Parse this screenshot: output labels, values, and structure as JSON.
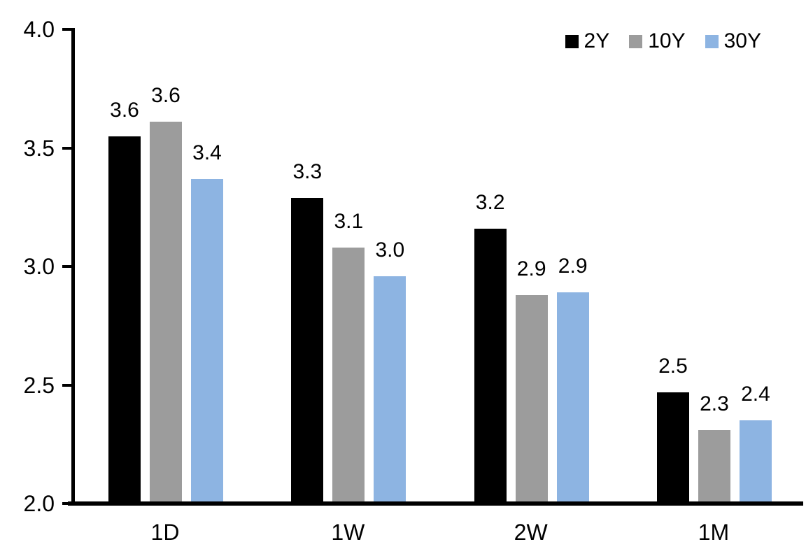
{
  "chart_data": {
    "type": "bar",
    "title": "",
    "xlabel": "",
    "ylabel": "",
    "categories": [
      "1D",
      "1W",
      "2W",
      "1M"
    ],
    "series": [
      {
        "name": "2Y",
        "color": "#000000",
        "values": [
          3.55,
          3.29,
          3.16,
          2.47
        ],
        "labels": [
          "3.6",
          "3.3",
          "3.2",
          "2.5"
        ]
      },
      {
        "name": "10Y",
        "color": "#9C9C9C",
        "values": [
          3.61,
          3.08,
          2.88,
          2.31
        ],
        "labels": [
          "3.6",
          "3.1",
          "2.9",
          "2.3"
        ]
      },
      {
        "name": "30Y",
        "color": "#8DB4E2",
        "values": [
          3.37,
          2.96,
          2.89,
          2.35
        ],
        "labels": [
          "3.4",
          "3.0",
          "2.9",
          "2.4"
        ]
      }
    ],
    "ylim": [
      2.0,
      4.0
    ],
    "ytick_step": 0.5,
    "yticks": [
      "4.0",
      "3.5",
      "3.0",
      "2.5",
      "2.0"
    ],
    "ytick_values": [
      4.0,
      3.5,
      3.0,
      2.5,
      2.0
    ],
    "grid": false,
    "legend_position": "top-right",
    "colors": {
      "axis": "#000000",
      "text": "#000000",
      "background": "#ffffff"
    }
  }
}
